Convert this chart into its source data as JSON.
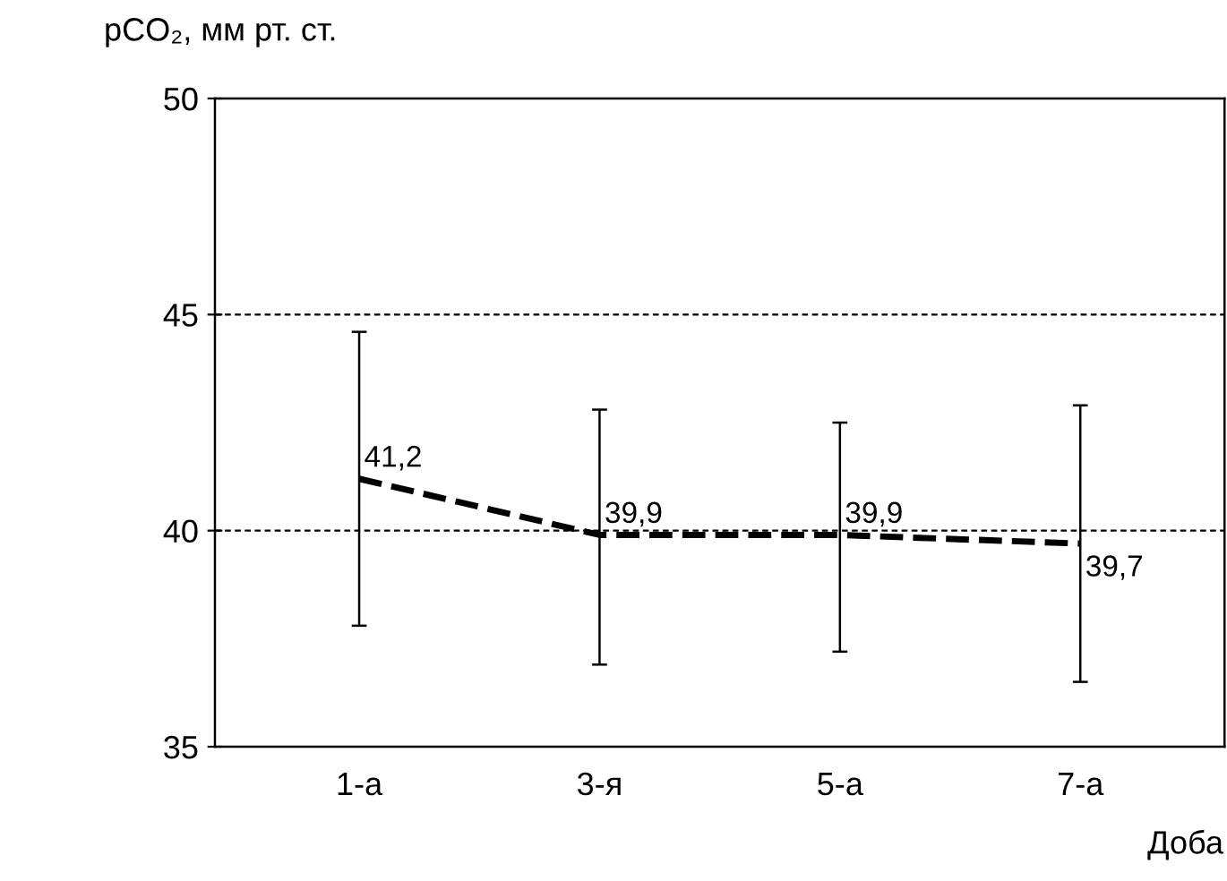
{
  "chart_data": {
    "type": "line",
    "ylabel": "pCO₂, мм рт. ст.",
    "xlabel": "Доба",
    "categories": [
      "1-а",
      "3-я",
      "5-а",
      "7-а"
    ],
    "values": [
      41.2,
      39.9,
      39.9,
      39.7
    ],
    "value_labels": [
      "41,2",
      "39,9",
      "39,9",
      "39,7"
    ],
    "errors": [
      [
        37.8,
        44.6
      ],
      [
        36.9,
        42.8
      ],
      [
        37.2,
        42.5
      ],
      [
        36.5,
        42.9
      ]
    ],
    "color": "#000000",
    "line_style": "dashed",
    "marker": "none",
    "ylim": [
      35,
      50
    ],
    "yticks": [
      35,
      40,
      45,
      50
    ],
    "grid": "y",
    "legend": false
  }
}
